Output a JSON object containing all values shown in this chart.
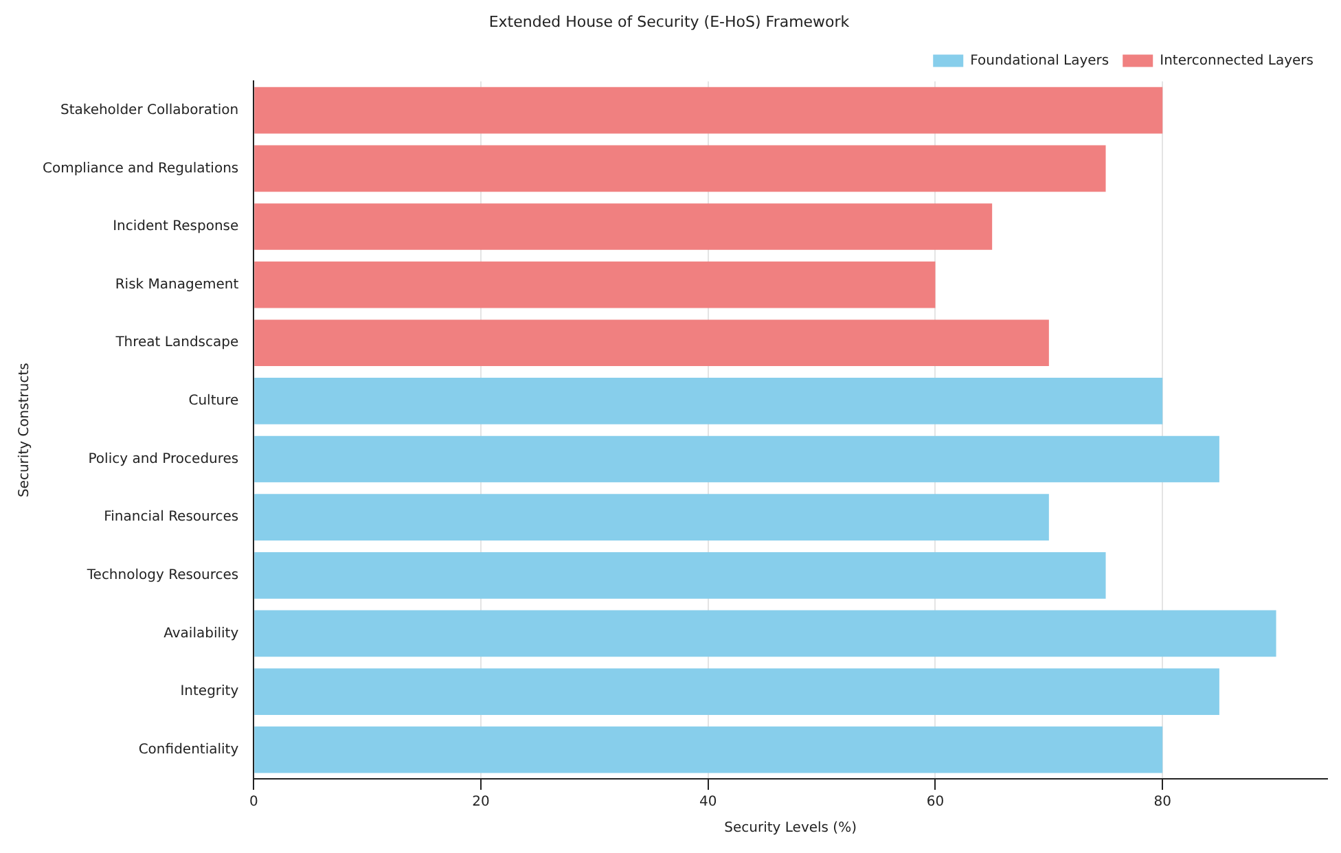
{
  "chart_data": {
    "type": "bar",
    "orientation": "horizontal",
    "title": "Extended House of Security (E-HoS) Framework",
    "xlabel": "Security Levels (%)",
    "ylabel": "Security Constructs",
    "categories": [
      "Stakeholder Collaboration",
      "Compliance and Regulations",
      "Incident Response",
      "Risk Management",
      "Threat Landscape",
      "Culture",
      "Policy and Procedures",
      "Financial Resources",
      "Technology Resources",
      "Availability",
      "Integrity",
      "Confidentiality"
    ],
    "series": [
      {
        "name": "Foundational Layers",
        "color": "#87ceeb",
        "values": [
          null,
          null,
          null,
          null,
          null,
          80,
          85,
          70,
          75,
          90,
          85,
          80
        ]
      },
      {
        "name": "Interconnected Layers",
        "color": "#f08080",
        "values": [
          80,
          75,
          65,
          60,
          70,
          null,
          null,
          null,
          null,
          null,
          null,
          null
        ]
      }
    ],
    "xlim": [
      0,
      94.5
    ],
    "xticks": [
      0,
      20,
      40,
      60,
      80
    ],
    "grid": "x",
    "legend": "top right"
  }
}
